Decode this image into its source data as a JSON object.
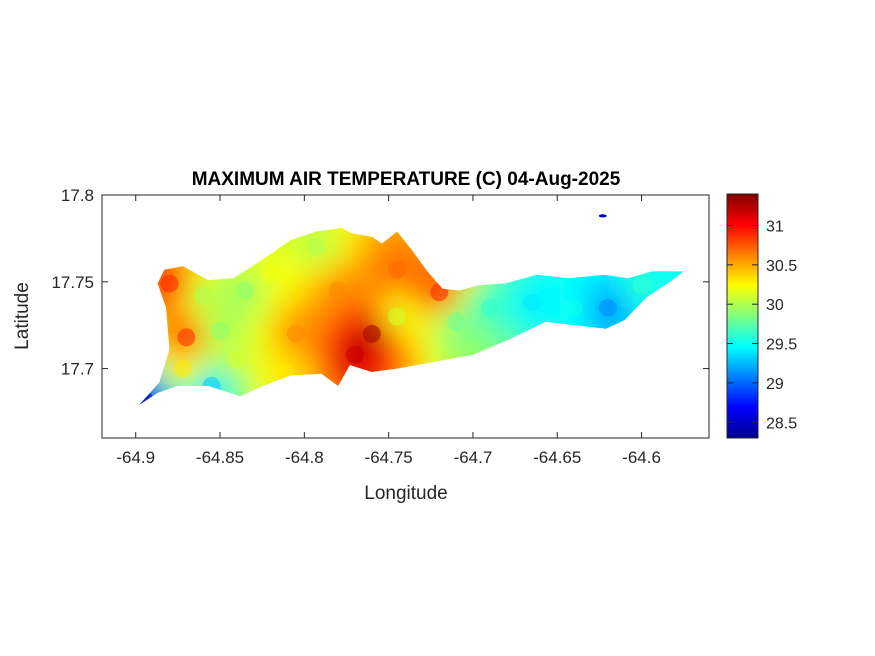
{
  "chart_data": {
    "type": "heatmap",
    "title": "MAXIMUM AIR TEMPERATURE (C) 04-Aug-2025",
    "xlabel": "Longitude",
    "ylabel": "Latitude",
    "xlim": [
      -64.92,
      -64.56
    ],
    "ylim": [
      17.66,
      17.8
    ],
    "xticks": [
      -64.9,
      -64.85,
      -64.8,
      -64.75,
      -64.7,
      -64.65,
      -64.6
    ],
    "yticks": [
      17.7,
      17.75,
      17.8
    ],
    "xtick_labels": [
      "-64.9",
      "-64.85",
      "-64.8",
      "-64.75",
      "-64.7",
      "-64.65",
      "-64.6"
    ],
    "ytick_labels": [
      "17.7",
      "17.75",
      "17.8"
    ],
    "colorbar": {
      "colormap": "jet",
      "range": [
        28.3,
        31.4
      ],
      "ticks": [
        28.5,
        29,
        29.5,
        30,
        30.5,
        31
      ],
      "tick_labels": [
        "28.5",
        "29",
        "29.5",
        "30",
        "30.5",
        "31"
      ]
    },
    "grid": false,
    "island_outline": [
      [
        -64.898,
        17.679
      ],
      [
        -64.886,
        17.692
      ],
      [
        -64.88,
        17.711
      ],
      [
        -64.882,
        17.735
      ],
      [
        -64.887,
        17.749
      ],
      [
        -64.883,
        17.757
      ],
      [
        -64.872,
        17.759
      ],
      [
        -64.857,
        17.751
      ],
      [
        -64.842,
        17.752
      ],
      [
        -64.826,
        17.762
      ],
      [
        -64.808,
        17.774
      ],
      [
        -64.793,
        17.779
      ],
      [
        -64.778,
        17.781
      ],
      [
        -64.772,
        17.778
      ],
      [
        -64.76,
        17.776
      ],
      [
        -64.754,
        17.772
      ],
      [
        -64.745,
        17.779
      ],
      [
        -64.736,
        17.768
      ],
      [
        -64.727,
        17.756
      ],
      [
        -64.718,
        17.746
      ],
      [
        -64.708,
        17.745
      ],
      [
        -64.697,
        17.748
      ],
      [
        -64.681,
        17.749
      ],
      [
        -64.662,
        17.754
      ],
      [
        -64.643,
        17.752
      ],
      [
        -64.622,
        17.754
      ],
      [
        -64.608,
        17.752
      ],
      [
        -64.594,
        17.756
      ],
      [
        -64.575,
        17.756
      ],
      [
        -64.583,
        17.75
      ],
      [
        -64.597,
        17.741
      ],
      [
        -64.61,
        17.728
      ],
      [
        -64.621,
        17.723
      ],
      [
        -64.64,
        17.725
      ],
      [
        -64.657,
        17.727
      ],
      [
        -64.678,
        17.717
      ],
      [
        -64.7,
        17.708
      ],
      [
        -64.722,
        17.704
      ],
      [
        -64.745,
        17.7
      ],
      [
        -64.76,
        17.698
      ],
      [
        -64.773,
        17.702
      ],
      [
        -64.78,
        17.69
      ],
      [
        -64.79,
        17.697
      ],
      [
        -64.808,
        17.696
      ],
      [
        -64.822,
        17.691
      ],
      [
        -64.838,
        17.684
      ],
      [
        -64.857,
        17.69
      ],
      [
        -64.875,
        17.69
      ],
      [
        -64.887,
        17.686
      ]
    ],
    "temperature_field": [
      {
        "lon": -64.88,
        "lat": 17.749,
        "t": 30.9
      },
      {
        "lon": -64.87,
        "lat": 17.718,
        "t": 30.9
      },
      {
        "lon": -64.872,
        "lat": 17.7,
        "t": 30.3
      },
      {
        "lon": -64.86,
        "lat": 17.742,
        "t": 30.0
      },
      {
        "lon": -64.85,
        "lat": 17.722,
        "t": 29.9
      },
      {
        "lon": -64.835,
        "lat": 17.745,
        "t": 29.9
      },
      {
        "lon": -64.82,
        "lat": 17.755,
        "t": 30.2
      },
      {
        "lon": -64.805,
        "lat": 17.72,
        "t": 30.6
      },
      {
        "lon": -64.793,
        "lat": 17.77,
        "t": 30.0
      },
      {
        "lon": -64.78,
        "lat": 17.745,
        "t": 30.6
      },
      {
        "lon": -64.77,
        "lat": 17.708,
        "t": 31.2
      },
      {
        "lon": -64.76,
        "lat": 17.72,
        "t": 31.3
      },
      {
        "lon": -64.745,
        "lat": 17.757,
        "t": 30.7
      },
      {
        "lon": -64.72,
        "lat": 17.744,
        "t": 30.9
      },
      {
        "lon": -64.71,
        "lat": 17.727,
        "t": 29.8
      },
      {
        "lon": -64.69,
        "lat": 17.735,
        "t": 29.6
      },
      {
        "lon": -64.665,
        "lat": 17.738,
        "t": 29.4
      },
      {
        "lon": -64.64,
        "lat": 17.735,
        "t": 29.5
      },
      {
        "lon": -64.62,
        "lat": 17.735,
        "t": 29.1
      },
      {
        "lon": -64.6,
        "lat": 17.748,
        "t": 29.6
      },
      {
        "lon": -64.59,
        "lat": 17.754,
        "t": 29.5
      },
      {
        "lon": -64.855,
        "lat": 17.69,
        "t": 29.3
      },
      {
        "lon": -64.895,
        "lat": 17.682,
        "t": 28.4
      },
      {
        "lon": -64.812,
        "lat": 17.698,
        "t": 30.3
      },
      {
        "lon": -64.84,
        "lat": 17.705,
        "t": 30.1
      },
      {
        "lon": -64.745,
        "lat": 17.73,
        "t": 30.1
      },
      {
        "lon": -64.7,
        "lat": 17.71,
        "t": 29.9
      }
    ],
    "extra_point": {
      "lon": -64.623,
      "lat": 17.788,
      "t": 28.5
    }
  }
}
